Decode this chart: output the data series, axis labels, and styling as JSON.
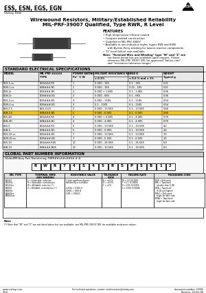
{
  "company_line": "ESS, ESN, EGS, EGN",
  "sub_company": "Vishay Dale",
  "title_line1": "Wirewound Resistors, Military/Established Reliability",
  "title_line2": "MIL-PRF-39007 Qualified, Type RWR, R Level",
  "features_title": "FEATURES",
  "features": [
    [
      "bullet",
      "High temperature silicone coated"
    ],
    [
      "bullet",
      "Compact welded construction"
    ],
    [
      "bullet",
      "Qualified to MIL-PRF-39007"
    ],
    [
      "bullet",
      "Available in non-inductive styles (types ESN and EGN)\n  with Ayrton-Perry winding for lowest reactive components"
    ],
    [
      "bullet",
      "\"D\" level failure rate available"
    ],
    [
      "note",
      "Note: \"Terminal Wire and Winding\" type \"W\" and \"Z\" are\n  not listed below but are available upon request. Please\n  reference MIL-PRF-39007 QPL for approved \"failure rate\"\n  and \"resistance tolerance ranges\""
    ]
  ],
  "table_title": "STANDARD ELECTRICAL SPECIFICATIONS",
  "col_headers": [
    "MODEL",
    "MIL-PRF-#####\nTYPE",
    "POWER RATING\nPDe °C W",
    "MILITARY RESISTANCE RANGE Ω",
    "WEIGHT\nTypical g"
  ],
  "col_sub": [
    "± 0.1%",
    "± 0.5 % and ± 1%"
  ],
  "table_data": [
    [
      "EGS-1-ss",
      "ESS###-R5",
      "1",
      "0.000 - 1E5",
      "0.1 - 1E5",
      "0.21"
    ],
    [
      "EGN-1-ss",
      "ESN###-N1",
      "1",
      "0.000 - 1E5",
      "0.01 - 1E5",
      "0.21"
    ],
    [
      "EGS-2r",
      "EGS###-R5",
      "2",
      "0.000 + 1.6K5",
      "0.1 - 1.6K5",
      "0.36"
    ],
    [
      "EGN-2r",
      "EGN###-N1",
      "2",
      "0.000 - 6K5",
      "0.1 - 6K5",
      "0.36"
    ],
    [
      "EGS-3-ss",
      "EGS###-R5",
      "3",
      "0.000 - 11K5",
      "0.1 - 11K5",
      "0.54"
    ],
    [
      "EGN-3-ss",
      "EGN###-N1",
      "3",
      "0.1 - 11K5",
      "0.1 - 11K5",
      "0.54"
    ],
    [
      "ESS-2.5",
      "ESS-1115",
      "2",
      "0.000 - 13.5K5",
      "0.1 - 13.5K5",
      "0.60"
    ],
    [
      "ESN-2.5",
      "ESN###-N5",
      "2",
      "0.000 - 6.5K5",
      "0.1 - 6.5K5",
      "0.60"
    ],
    [
      "ESS-4D",
      "ESS###-R5",
      "4",
      "0.000 + 4.2K5",
      "0.1 - 4.2K5",
      "0.70"
    ],
    [
      "ESN-4D",
      "ESN###-N1",
      "4",
      "0.000 - 4.0K5",
      "0.1 - 4.0K5",
      "0.70"
    ],
    [
      "ESS-5",
      "ESS###-R5",
      "5",
      "0.000 - 10.5K5",
      "0.1 - 10.5K5",
      "4.2"
    ],
    [
      "ESN-5",
      "ESN###-N1",
      "5",
      "0.000 - 0.0K5",
      "0.1 - 10.5K5",
      "4.2"
    ],
    [
      "EGS-10-ss",
      "EGS###-R5",
      "7",
      "0.000 - 13.5K5",
      "0.1 - 13.5K5",
      "3.5"
    ],
    [
      "EGN-10-ss",
      "EGN###-N1",
      "7",
      "0.000 - 6.1K5",
      "0.1 - 6.1K5",
      "3.5"
    ],
    [
      "ESS-10",
      "ESS###-R45",
      "10",
      "0.000 - 26.5K5",
      "0.1 - 26.5K5",
      "6.0"
    ],
    [
      "ESN-10",
      "ESN###-N45",
      "10",
      "0.000 - 10.5K5",
      "0.1 - 10.5K5",
      "6.0"
    ]
  ],
  "highlight_row": 7,
  "highlight_color": "#f5c518",
  "pn_title": "GLOBAL PART NUMBER INFORMATION",
  "pn_subtitle": "Global/Military Part Numbering: RWR##s##s##S# # #",
  "pn_boxes": [
    "R",
    "W",
    "R",
    "7",
    "4",
    "S",
    "4",
    "S",
    "R",
    "S",
    "P",
    "S",
    "B",
    "1",
    "2"
  ],
  "pn_labels": [
    "MIL TYPE",
    "TERMINAL WIRE\nAND WINDING",
    "RESISTANCE VALUE",
    "TOLERANCE\nCODE",
    "FAILURE RATE",
    "PACKAGING CODE"
  ],
  "pn_contents": [
    "ESS/#1\nESS/#1s\nESS/#1ss\nESN/#1\nESN/#1s\nESN/#1ss\nESN/#1sss",
    "S = Solderable, inductive\nN = Solderable, noninductive\nW = Weldable, inductive (*)\nZ = Weldable, noninductive (*)",
    "3-digit significant figures\nfollowed by a multiplier\n\nm/R#s = 0.001 Ω\n1000S = 1000 Ω\n1001 = 1000 Ω",
    "B = ±0.1%\nD = ±0.5%\nF = ±1%",
    "M = 1.0 %/1000h\nP = 0.1 %/1000h\nR = 0.01 %/1000h\nS = 0.001 %/1000h",
    "BXS = Bulk pack\nBPk = Taperized\n  (smaller than 6 1B)\nBXA = Taperized\n  (6 1B and higher)\nBPk2 = Bulk pack,\n  single lot date code\nBXA2 = Taperized,\n  single lot date code"
  ],
  "note_text": "(*) Note that \"W\" and \"Z\" are not listed above but are available, see MIL-PRF-39007 QPL for available resistance values.",
  "footer_web": "www.vishay.com",
  "footer_contact": "For technical questions, contact: amilinventors@vishay.com",
  "footer_doc": "document number: 30303",
  "footer_rev": "Revision: 20-Oct-08",
  "footer_page": "1/5#"
}
